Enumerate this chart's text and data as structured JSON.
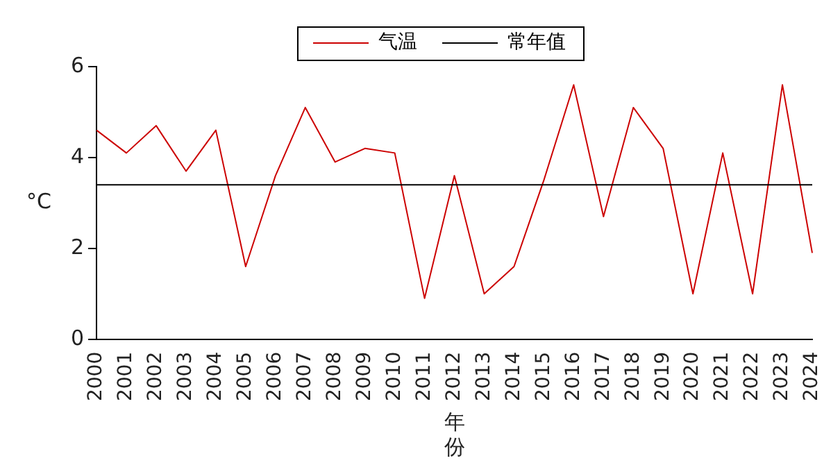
{
  "chart_data": {
    "type": "line",
    "xlabel": "年份",
    "ylabel": "°C",
    "categories": [
      "2000",
      "2001",
      "2002",
      "2003",
      "2004",
      "2005",
      "2006",
      "2007",
      "2008",
      "2009",
      "2010",
      "2011",
      "2012",
      "2013",
      "2014",
      "2015",
      "2016",
      "2017",
      "2018",
      "2019",
      "2020",
      "2021",
      "2022",
      "2023",
      "2024"
    ],
    "series": [
      {
        "name": "气温",
        "color": "#cc0000",
        "values": [
          4.6,
          4.1,
          4.7,
          3.7,
          4.6,
          1.6,
          3.6,
          5.1,
          3.9,
          4.2,
          4.1,
          0.9,
          3.6,
          1.0,
          1.6,
          3.5,
          5.6,
          2.7,
          5.1,
          4.2,
          1.0,
          4.1,
          1.0,
          5.6,
          1.9
        ]
      }
    ],
    "ref_lines": [
      {
        "axis": "y",
        "value": 3.4,
        "label": "常年值",
        "color": "#000000"
      }
    ],
    "ylim": [
      0,
      6
    ],
    "yticks": [
      0,
      2,
      4,
      6
    ],
    "grid": false,
    "legend": "top",
    "marker": "none",
    "line_style": "solid"
  }
}
